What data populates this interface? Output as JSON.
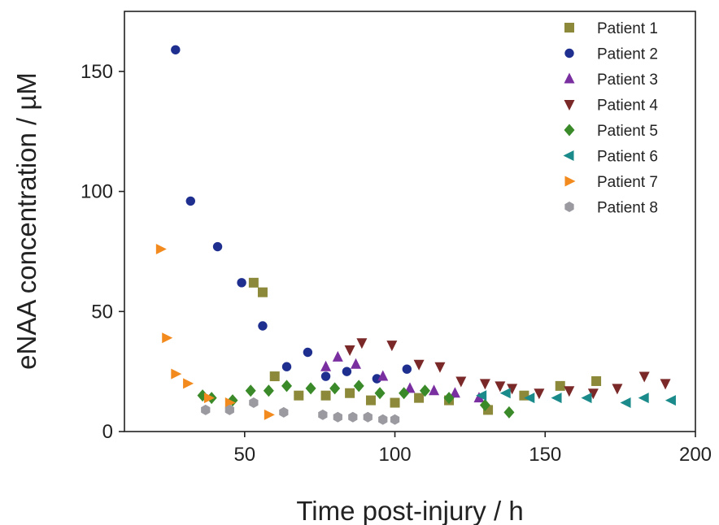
{
  "chart_data": {
    "type": "scatter",
    "xlabel": "Time post-injury / h",
    "ylabel": "eNAA concentration / µM",
    "xlim": [
      10,
      200
    ],
    "ylim": [
      0,
      175
    ],
    "xticks": [
      50,
      100,
      150,
      200
    ],
    "yticks": [
      0,
      50,
      100,
      150
    ],
    "grid": false,
    "legend_position": "top-right",
    "series": [
      {
        "name": "Patient 1",
        "marker": "square",
        "color": "#8c8a3a",
        "points": [
          [
            53,
            62
          ],
          [
            56,
            58
          ],
          [
            60,
            23
          ],
          [
            68,
            15
          ],
          [
            77,
            15
          ],
          [
            85,
            16
          ],
          [
            92,
            13
          ],
          [
            100,
            12
          ],
          [
            108,
            14
          ],
          [
            118,
            13
          ],
          [
            131,
            9
          ],
          [
            143,
            15
          ],
          [
            155,
            19
          ],
          [
            167,
            21
          ]
        ]
      },
      {
        "name": "Patient 2",
        "marker": "circle",
        "color": "#1f2f8f",
        "points": [
          [
            27,
            159
          ],
          [
            32,
            96
          ],
          [
            41,
            77
          ],
          [
            49,
            62
          ],
          [
            56,
            44
          ],
          [
            64,
            27
          ],
          [
            71,
            33
          ],
          [
            77,
            23
          ],
          [
            84,
            25
          ],
          [
            94,
            22
          ],
          [
            104,
            26
          ]
        ]
      },
      {
        "name": "Patient 3",
        "marker": "triangle-up",
        "color": "#7a2fa0",
        "points": [
          [
            77,
            27
          ],
          [
            81,
            31
          ],
          [
            87,
            28
          ],
          [
            96,
            23
          ],
          [
            105,
            18
          ],
          [
            113,
            17
          ],
          [
            120,
            16
          ],
          [
            128,
            14
          ]
        ]
      },
      {
        "name": "Patient 4",
        "marker": "triangle-down",
        "color": "#7a2828",
        "points": [
          [
            85,
            34
          ],
          [
            89,
            37
          ],
          [
            99,
            36
          ],
          [
            108,
            28
          ],
          [
            115,
            27
          ],
          [
            122,
            21
          ],
          [
            130,
            20
          ],
          [
            135,
            19
          ],
          [
            139,
            18
          ],
          [
            148,
            16
          ],
          [
            158,
            17
          ],
          [
            166,
            16
          ],
          [
            174,
            18
          ],
          [
            183,
            23
          ],
          [
            190,
            20
          ]
        ]
      },
      {
        "name": "Patient 5",
        "marker": "diamond",
        "color": "#3a8a2a",
        "points": [
          [
            36,
            15
          ],
          [
            39,
            14
          ],
          [
            46,
            13
          ],
          [
            52,
            17
          ],
          [
            58,
            17
          ],
          [
            64,
            19
          ],
          [
            72,
            18
          ],
          [
            80,
            18
          ],
          [
            88,
            19
          ],
          [
            95,
            16
          ],
          [
            103,
            16
          ],
          [
            110,
            17
          ],
          [
            118,
            14
          ],
          [
            130,
            11
          ],
          [
            138,
            8
          ]
        ]
      },
      {
        "name": "Patient 6",
        "marker": "triangle-left",
        "color": "#1a8a8a",
        "points": [
          [
            129,
            15
          ],
          [
            137,
            16
          ],
          [
            145,
            14
          ],
          [
            154,
            14
          ],
          [
            164,
            14
          ],
          [
            177,
            12
          ],
          [
            183,
            14
          ],
          [
            192,
            13
          ]
        ]
      },
      {
        "name": "Patient 7",
        "marker": "triangle-right",
        "color": "#f28a1e",
        "points": [
          [
            22,
            76
          ],
          [
            24,
            39
          ],
          [
            27,
            24
          ],
          [
            31,
            20
          ],
          [
            38,
            14
          ],
          [
            45,
            12
          ],
          [
            58,
            7
          ]
        ]
      },
      {
        "name": "Patient 8",
        "marker": "hexagon",
        "color": "#9a9aa0",
        "points": [
          [
            37,
            9
          ],
          [
            45,
            9
          ],
          [
            53,
            12
          ],
          [
            63,
            8
          ],
          [
            76,
            7
          ],
          [
            81,
            6
          ],
          [
            86,
            6
          ],
          [
            91,
            6
          ],
          [
            96,
            5
          ],
          [
            100,
            5
          ]
        ]
      }
    ]
  }
}
